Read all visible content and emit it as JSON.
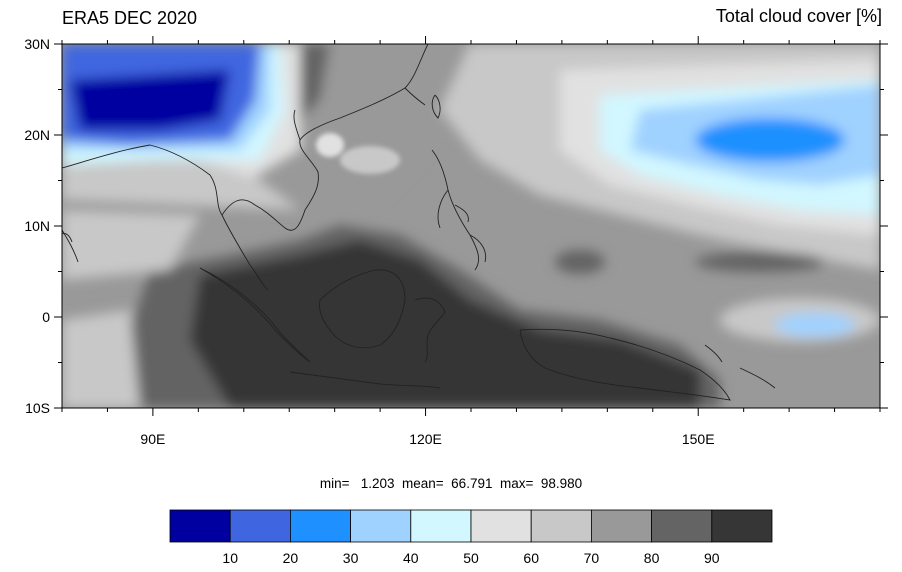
{
  "header": {
    "title_left": "ERA5 DEC 2020",
    "title_right": "Total cloud cover [%]"
  },
  "axes": {
    "y_ticks": [
      {
        "value": 30,
        "label": "30N"
      },
      {
        "value": 20,
        "label": "20N"
      },
      {
        "value": 10,
        "label": "10N"
      },
      {
        "value": 0,
        "label": "0"
      },
      {
        "value": -10,
        "label": "10S"
      }
    ],
    "x_ticks": [
      {
        "value": 90,
        "label": "90E"
      },
      {
        "value": 120,
        "label": "120E"
      },
      {
        "value": 150,
        "label": "150E"
      }
    ],
    "lon_range": [
      80,
      170
    ],
    "lat_range": [
      -10,
      30
    ]
  },
  "stats": {
    "text": "min=   1.203  mean=  66.791  max=  98.980"
  },
  "colorbar": {
    "colors": [
      "#0000a0",
      "#3f66e0",
      "#1e90ff",
      "#a0d2ff",
      "#d2f7ff",
      "#e1e1e1",
      "#c8c8c8",
      "#999999",
      "#646464",
      "#363636"
    ],
    "labels": [
      "10",
      "20",
      "30",
      "40",
      "50",
      "60",
      "70",
      "80",
      "90"
    ]
  }
}
